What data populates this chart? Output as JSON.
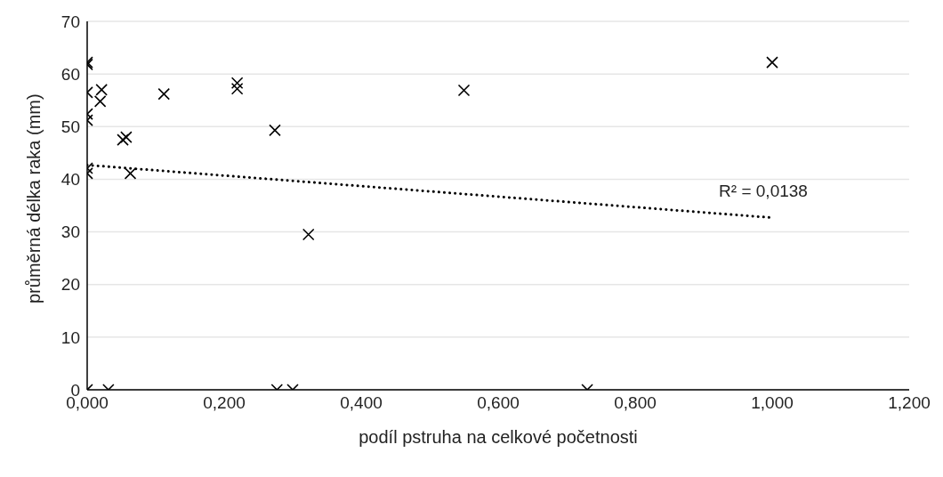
{
  "chart_data": {
    "type": "scatter",
    "xlabel": "podíl pstruha na celkové početnosti",
    "ylabel": "průměrná délka raka (mm)",
    "xlim": [
      0,
      1.2
    ],
    "xticks": [
      {
        "value": 0,
        "label": "0,000"
      },
      {
        "value": 0.2,
        "label": "0,200"
      },
      {
        "value": 0.4,
        "label": "0,400"
      },
      {
        "value": 0.6,
        "label": "0,600"
      },
      {
        "value": 0.8,
        "label": "0,800"
      },
      {
        "value": 1.0,
        "label": "1,000"
      },
      {
        "value": 1.2,
        "label": "1,200"
      }
    ],
    "ylim": [
      0,
      70
    ],
    "yticks": [
      0,
      10,
      20,
      30,
      40,
      50,
      60,
      70
    ],
    "grid": "y",
    "series": [
      {
        "marker": "cross",
        "color": "#000000",
        "x": [
          0,
          0,
          0,
          0,
          0,
          0,
          0,
          0,
          0.021,
          0.019,
          0.112,
          0.052,
          0.057,
          0.063,
          0.219,
          0.219,
          0.274,
          0.55,
          1.0,
          0.323,
          0.031,
          0.277,
          0.3,
          0.73
        ],
        "values": [
          62.2,
          61.8,
          56.5,
          52.4,
          51.2,
          42.1,
          41.1,
          0,
          57.0,
          54.8,
          56.2,
          47.5,
          48.0,
          41.1,
          58.3,
          57.2,
          49.3,
          56.9,
          62.2,
          29.5,
          0,
          0,
          0,
          0
        ]
      },
      {
        "type": "line",
        "color": "#000000",
        "line_style": "dotted",
        "x": [
          0,
          1.0
        ],
        "values": [
          42.7,
          32.7
        ]
      }
    ],
    "annotations": [
      "R² = 0,0138"
    ]
  }
}
